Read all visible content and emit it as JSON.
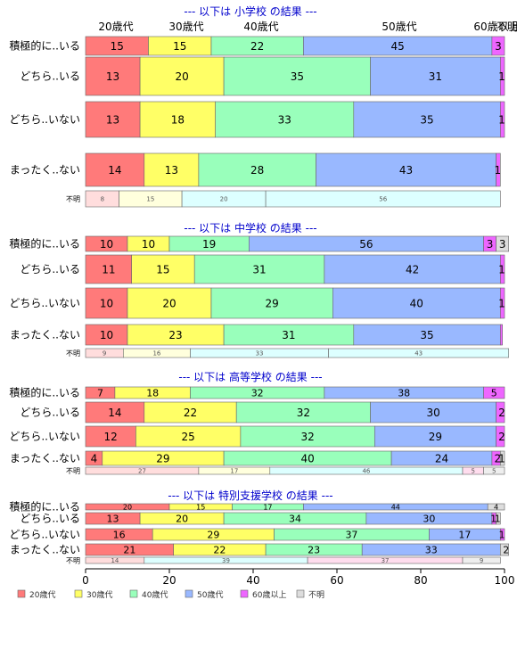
{
  "chart_data": {
    "type": "bar",
    "stacked": true,
    "orientation": "horizontal",
    "percent": true,
    "xlim": [
      0,
      100
    ],
    "x_ticks": [
      "0",
      "20",
      "40",
      "60",
      "80",
      "100"
    ],
    "legend": {
      "placement": "bottom",
      "items": [
        {
          "name": "20歳代",
          "color": "#ff7a7a"
        },
        {
          "name": "30歳代",
          "color": "#ffff66"
        },
        {
          "name": "40歳代",
          "color": "#99ffbb"
        },
        {
          "name": "50歳代",
          "color": "#99b8ff"
        },
        {
          "name": "60歳以上",
          "color": "#ee66ff"
        },
        {
          "name": "不明",
          "color": "#dddddd"
        }
      ]
    },
    "top_labels": [
      "20歳代",
      "30歳代",
      "40歳代",
      "50歳代",
      "60歳以上",
      "不明"
    ],
    "panels": [
      {
        "title": "--- 以下は 小学校 の結果 ---",
        "rows": [
          {
            "label": "積極的に..いる",
            "values": [
              15,
              15,
              22,
              45,
              3,
              0
            ]
          },
          {
            "label": "どちら..いる",
            "values": [
              13,
              20,
              35,
              31,
              1,
              0
            ]
          },
          {
            "label": "どちら..いない",
            "values": [
              13,
              18,
              33,
              35,
              1,
              0
            ]
          },
          {
            "label": "まったく..ない",
            "values": [
              14,
              13,
              28,
              43,
              1,
              0
            ]
          },
          {
            "label": "不明",
            "values": [
              8,
              15,
              20,
              56,
              0,
              0
            ],
            "unknown": true
          }
        ]
      },
      {
        "title": "--- 以下は 中学校 の結果 ---",
        "rows": [
          {
            "label": "積極的に..いる",
            "values": [
              10,
              10,
              19,
              56,
              3,
              3
            ]
          },
          {
            "label": "どちら..いる",
            "values": [
              11,
              15,
              31,
              42,
              1,
              0
            ]
          },
          {
            "label": "どちら..いない",
            "values": [
              10,
              20,
              29,
              40,
              1,
              0
            ]
          },
          {
            "label": "まったく..ない",
            "values": [
              10,
              23,
              31,
              35,
              0.5,
              0
            ]
          },
          {
            "label": "不明",
            "values": [
              9,
              16,
              33,
              43,
              0,
              0
            ],
            "unknown": true
          }
        ]
      },
      {
        "title": "--- 以下は 高等学校 の結果 ---",
        "rows": [
          {
            "label": "積極的に..いる",
            "values": [
              7,
              18,
              32,
              38,
              5,
              0
            ]
          },
          {
            "label": "どちら..いる",
            "values": [
              14,
              22,
              32,
              30,
              2,
              0
            ]
          },
          {
            "label": "どちら..いない",
            "values": [
              12,
              25,
              32,
              29,
              2,
              0
            ]
          },
          {
            "label": "まったく..ない",
            "values": [
              4,
              29,
              40,
              24,
              2,
              1
            ]
          },
          {
            "label": "不明",
            "values": [
              27,
              17,
              46,
              0,
              5,
              5
            ],
            "unknown": true
          }
        ]
      },
      {
        "title": "--- 以下は 特別支援学校 の結果 ---",
        "rows": [
          {
            "label": "積極的に..いる",
            "values": [
              20,
              15,
              17,
              44,
              0,
              4
            ],
            "small": true
          },
          {
            "label": "どちら..いる",
            "values": [
              13,
              20,
              34,
              30,
              1,
              1
            ]
          },
          {
            "label": "どちら..いない",
            "values": [
              16,
              29,
              37,
              17,
              1,
              0
            ]
          },
          {
            "label": "まったく..ない",
            "values": [
              21,
              22,
              23,
              33,
              0,
              2
            ]
          },
          {
            "label": "不明",
            "values": [
              14,
              0,
              39,
              0,
              37,
              9
            ],
            "unknown": true
          }
        ]
      }
    ]
  }
}
